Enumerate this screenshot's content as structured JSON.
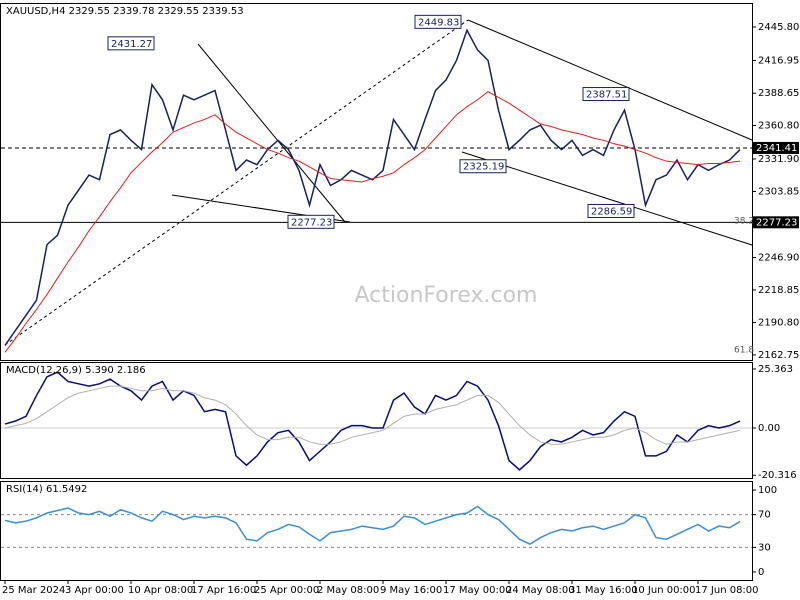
{
  "chart_data": [
    {
      "type": "line",
      "title": "XAUUSD,H4  2329.55 2339.78 2329.55 2339.53",
      "watermark": "ActionForex.com",
      "categories": [
        "25 Mar 2024",
        null,
        null,
        null,
        null,
        null,
        "3 Apr 00:00",
        null,
        null,
        null,
        null,
        null,
        "10 Apr 08:00",
        null,
        null,
        null,
        null,
        null,
        "17 Apr 16:00",
        null,
        null,
        null,
        null,
        null,
        "25 Apr 00:00",
        null,
        null,
        null,
        null,
        null,
        "2 May 08:00",
        null,
        null,
        null,
        null,
        null,
        "9 May 16:00",
        null,
        null,
        null,
        null,
        null,
        "17 May 00:00",
        null,
        null,
        null,
        null,
        null,
        "24 May 08:00",
        null,
        null,
        null,
        null,
        null,
        "31 May 16:00",
        null,
        null,
        null,
        null,
        null,
        "10 Jun 00:00",
        null,
        null,
        null,
        null,
        null,
        "17 Jun 08:00",
        null,
        null,
        null,
        null
      ],
      "series": [
        {
          "color": "#1a1f5e",
          "values": [
            2171,
            2184,
            2197,
            2210,
            2258,
            2266,
            2292,
            2305,
            2318,
            2314,
            2353,
            2357,
            2348,
            2340,
            2396,
            2383,
            2357,
            2387,
            2383,
            2387,
            2391,
            2357,
            2322,
            2331,
            2327,
            2340,
            2348,
            2340,
            2322,
            2292,
            2327,
            2309,
            2314,
            2322,
            2318,
            2314,
            2322,
            2366,
            2353,
            2340,
            2366,
            2391,
            2400,
            2417,
            2443,
            2426,
            2417,
            2374,
            2340,
            2348,
            2357,
            2361,
            2348,
            2340,
            2348,
            2335,
            2340,
            2335,
            2357,
            2374,
            2340,
            2292,
            2314,
            2318,
            2331,
            2314,
            2327,
            2322,
            2327,
            2331,
            2340
          ]
        },
        {
          "color": "#e0201b",
          "values": [
            2165,
            2177,
            2190,
            2202,
            2215,
            2229,
            2243,
            2256,
            2270,
            2282,
            2295,
            2307,
            2320,
            2329,
            2338,
            2346,
            2355,
            2359,
            2363,
            2366,
            2370,
            2362,
            2355,
            2350,
            2345,
            2340,
            2337,
            2333,
            2330,
            2325,
            2320,
            2315,
            2314,
            2313,
            2312,
            2315,
            2317,
            2320,
            2327,
            2333,
            2340,
            2350,
            2360,
            2370,
            2377,
            2383,
            2390,
            2385,
            2380,
            2374,
            2368,
            2362,
            2360,
            2357,
            2355,
            2353,
            2350,
            2348,
            2345,
            2343,
            2340,
            2337,
            2333,
            2330,
            2329,
            2328,
            2327,
            2328,
            2328,
            2329,
            2330
          ]
        }
      ],
      "ylim": [
        2158.4,
        2465.65
      ],
      "yticks": [
        {
          "value": 2445.8,
          "label": "2445.80"
        },
        {
          "value": 2416.95,
          "label": "2416.95"
        },
        {
          "value": 2388.65,
          "label": "2388.65"
        },
        {
          "value": 2360.8,
          "label": "2360.80"
        },
        {
          "value": 2331.9,
          "label": "2331.90"
        },
        {
          "value": 2303.85,
          "label": "2303.85"
        },
        {
          "value": 2246.9,
          "label": "2246.90"
        },
        {
          "value": 2218.85,
          "label": "2218.85"
        },
        {
          "value": 2190.8,
          "label": "2190.80"
        },
        {
          "value": 2162.75,
          "label": "2162.75"
        }
      ],
      "levels": [
        2341.41,
        2277.23
      ],
      "price_labels": [
        2431.27,
        2449.83,
        2387.51,
        2325.19,
        2286.59,
        2277.23
      ],
      "fib_labels": [
        38.2,
        61.8
      ]
    },
    {
      "type": "line",
      "title": "MACD(12,26,9) 5.390 2.186",
      "series": [
        {
          "color": "#0a0a7a",
          "values": [
            1.7,
            3,
            5,
            14,
            22,
            24,
            20,
            19,
            18,
            19,
            21,
            18,
            16,
            12,
            18,
            20,
            12,
            16,
            14,
            7,
            8,
            7,
            -12,
            -16,
            -12,
            -6,
            -2,
            -1,
            -6,
            -14,
            -10,
            -6,
            -1,
            1,
            1,
            0,
            0,
            12,
            15,
            9,
            6,
            14,
            12,
            14,
            20,
            18,
            12,
            1,
            -14,
            -18,
            -14,
            -8,
            -5,
            -6,
            -4,
            -1,
            -3,
            -2,
            3,
            7,
            5,
            -12,
            -12,
            -10,
            -3,
            -6,
            -1,
            1,
            0,
            1,
            3
          ]
        },
        {
          "color": "#b0b0b0",
          "values": [
            0,
            1,
            2,
            4,
            7,
            10,
            13,
            15,
            16,
            17,
            18,
            18,
            17,
            16,
            16,
            17,
            16,
            16,
            15,
            13,
            12,
            10,
            6,
            1,
            -3,
            -5,
            -5,
            -4,
            -4,
            -6,
            -7,
            -7,
            -6,
            -4,
            -3,
            -2,
            -1,
            2,
            5,
            6,
            6,
            8,
            9,
            10,
            12,
            14,
            14,
            11,
            6,
            1,
            -3,
            -6,
            -7,
            -7,
            -6,
            -5,
            -4,
            -4,
            -3,
            -1,
            0,
            -2,
            -5,
            -7,
            -6,
            -6,
            -5,
            -4,
            -3,
            -2,
            -1
          ]
        }
      ],
      "ylim": [
        -21.5,
        27.94
      ],
      "yticks": [
        25.363,
        {
          "value": 0,
          "label": "0.00"
        },
        -20.316
      ]
    },
    {
      "type": "line",
      "title": "RSI(14) 61.5492",
      "series": [
        {
          "color": "#3a8fd8",
          "values": [
            63,
            60,
            62,
            66,
            72,
            75,
            78,
            72,
            70,
            74,
            68,
            76,
            72,
            66,
            62,
            74,
            70,
            64,
            68,
            66,
            68,
            66,
            60,
            40,
            38,
            48,
            52,
            58,
            55,
            46,
            38,
            48,
            50,
            52,
            56,
            54,
            52,
            56,
            68,
            66,
            58,
            62,
            66,
            70,
            72,
            80,
            70,
            64,
            52,
            40,
            34,
            42,
            48,
            52,
            50,
            54,
            56,
            52,
            56,
            60,
            70,
            66,
            42,
            40,
            46,
            52,
            58,
            50,
            56,
            54,
            61.5
          ]
        }
      ],
      "ylim": [
        -9.8,
        109.8
      ],
      "yticks": [
        100,
        70,
        30,
        0
      ],
      "dashed_levels": [
        70,
        30
      ]
    }
  ]
}
